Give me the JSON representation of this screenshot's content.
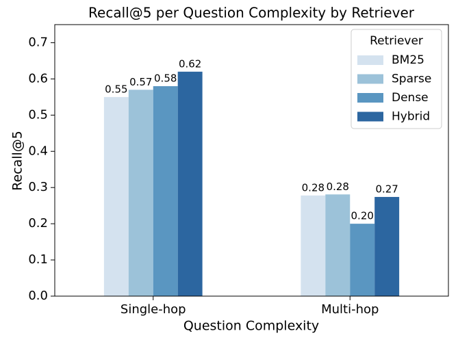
{
  "chart_data": {
    "type": "bar",
    "title": "Recall@5 per Question Complexity by Retriever",
    "x_label": "Question Complexity",
    "y_label": "Recall@5",
    "categories": [
      "Single-hop",
      "Multi-hop"
    ],
    "legend_title": "Retriever",
    "legend": "upper right",
    "series": [
      {
        "name": "BM25",
        "color": "#d4e2ef",
        "values": [
          0.55,
          0.278
        ],
        "value_labels": [
          "0.55",
          "0.28"
        ]
      },
      {
        "name": "Sparse",
        "color": "#9cc2d9",
        "values": [
          0.57,
          0.281
        ],
        "value_labels": [
          "0.57",
          "0.28"
        ]
      },
      {
        "name": "Dense",
        "color": "#5a96c1",
        "values": [
          0.58,
          0.2
        ],
        "value_labels": [
          "0.58",
          "0.20"
        ]
      },
      {
        "name": "Hybrid",
        "color": "#2c66a0",
        "values": [
          0.62,
          0.274
        ],
        "value_labels": [
          "0.62",
          "0.27"
        ]
      }
    ],
    "ylim": [
      0,
      0.75
    ],
    "yticks": [
      {
        "value": 0,
        "label": "0.0"
      },
      0.1,
      0.2,
      0.3,
      0.4,
      0.5,
      0.6,
      0.7
    ]
  }
}
